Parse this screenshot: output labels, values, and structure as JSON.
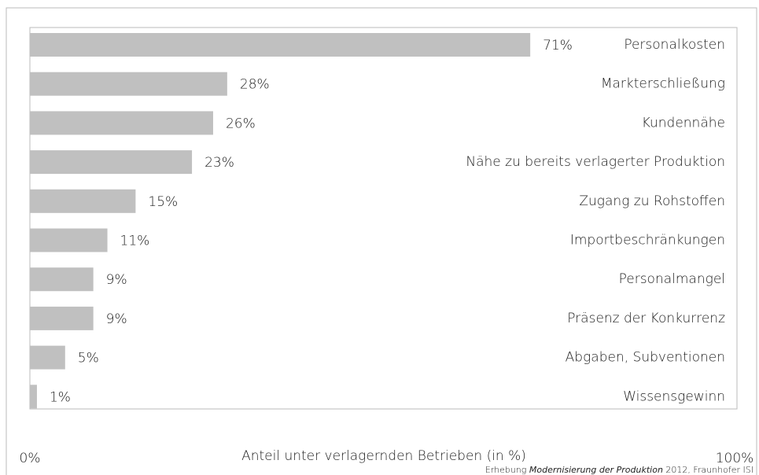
{
  "chart_data": {
    "type": "barh",
    "categories": [
      "Personalkosten",
      "Markterschließung",
      "Kundennähe",
      "Nähe zu bereits verlagerter Produktion",
      "Zugang zu Rohstoffen",
      "Importbeschränkungen",
      "Personalmangel",
      "Präsenz der Konkurrenz",
      "Abgaben, Subventionen",
      "Wissensgewinn"
    ],
    "values": [
      71,
      28,
      26,
      23,
      15,
      11,
      9,
      9,
      5,
      1
    ],
    "value_labels": [
      "71%",
      "28%",
      "26%",
      "23%",
      "15%",
      "11%",
      "9%",
      "9%",
      "5%",
      "1%"
    ],
    "color": "#c0c0c0",
    "xlim": [
      0,
      100
    ],
    "xticks": [
      {
        "value": 0,
        "label": "0%"
      },
      {
        "value": 100,
        "label": "100%"
      }
    ],
    "xlabel": "Anteil unter verlagernden Betrieben (in %)",
    "source": {
      "prefix": "Erhebung ",
      "title": "Modernisierung der Produktion",
      "suffix": " 2012, Fraunhofer ISI"
    }
  }
}
